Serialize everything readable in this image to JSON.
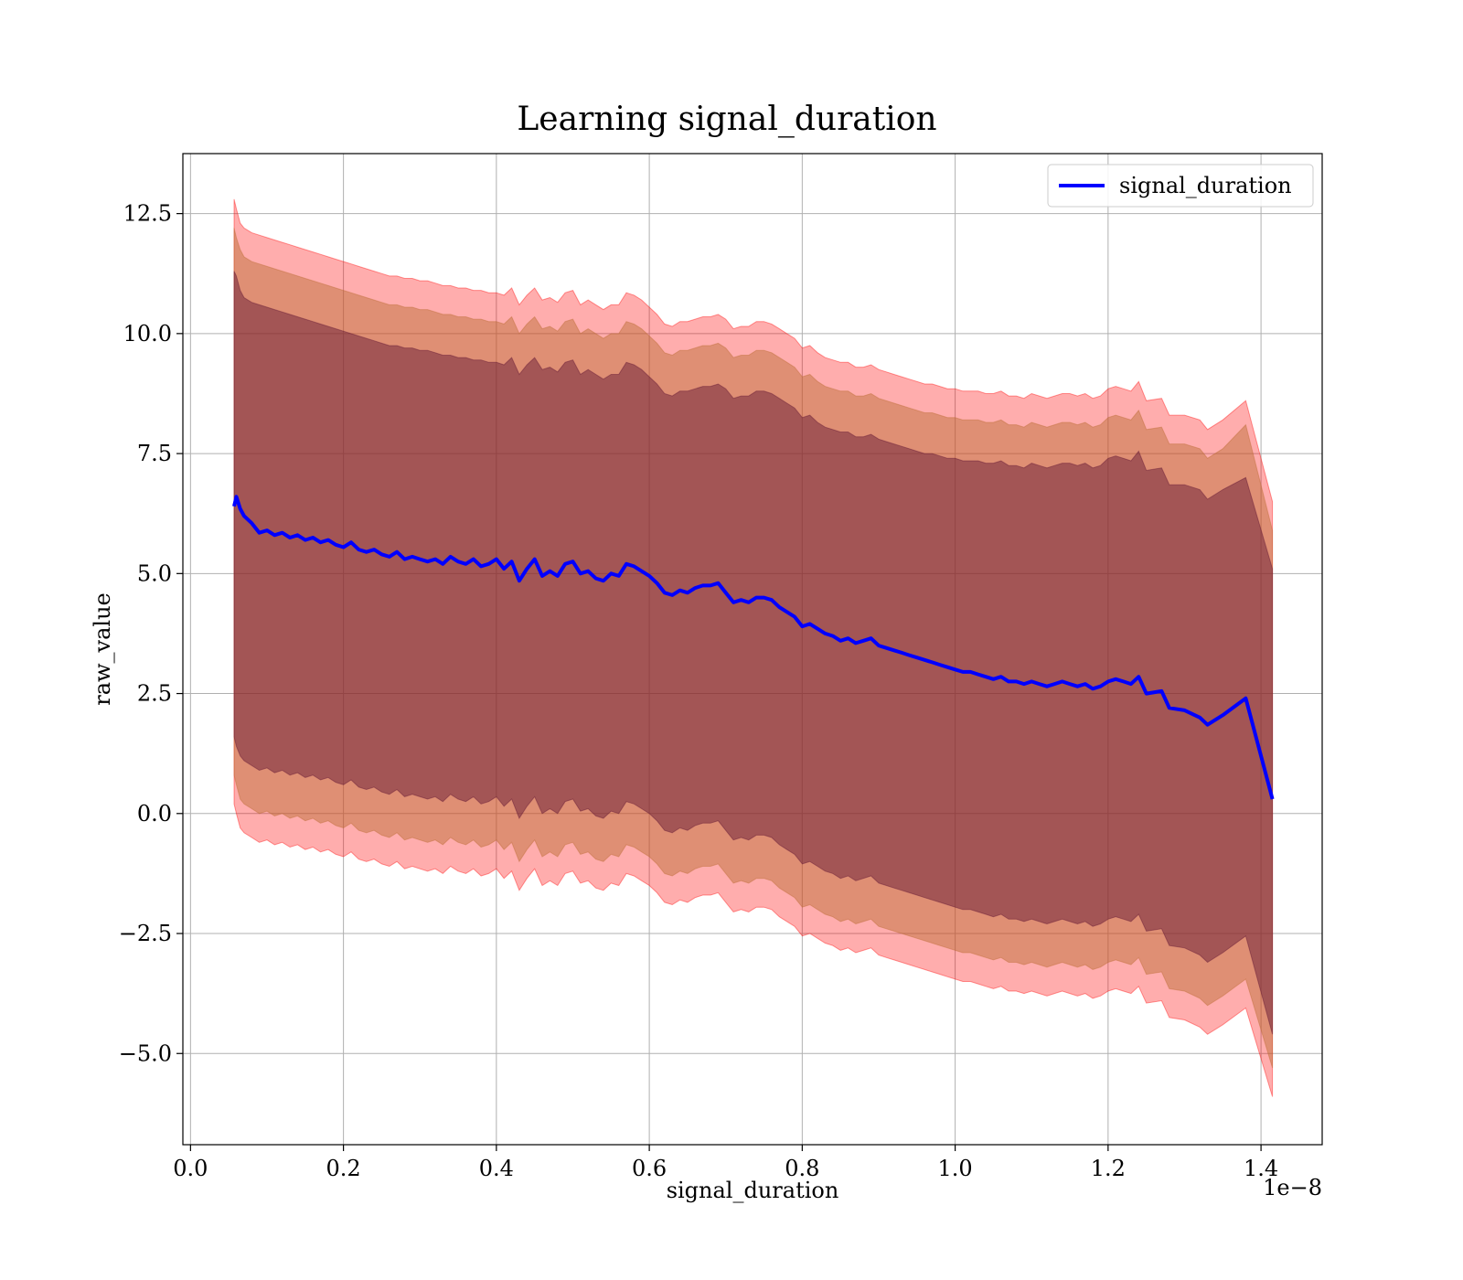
{
  "chart_data": {
    "type": "line",
    "title": "Learning signal_duration",
    "xlabel": "signal_duration",
    "ylabel": "raw_value",
    "x_offset_label": "1e−8",
    "xlim": [
      -0.01,
      1.48
    ],
    "ylim": [
      -6.9,
      13.75
    ],
    "x_ticks": [
      0.0,
      0.2,
      0.4,
      0.6,
      0.8,
      1.0,
      1.2,
      1.4
    ],
    "x_tick_labels": [
      "0.0",
      "0.2",
      "0.4",
      "0.6",
      "0.8",
      "1.0",
      "1.2",
      "1.4"
    ],
    "y_ticks": [
      -5.0,
      -2.5,
      0.0,
      2.5,
      5.0,
      7.5,
      10.0,
      12.5
    ],
    "y_tick_labels": [
      "−5.0",
      "−2.5",
      "0.0",
      "2.5",
      "5.0",
      "7.5",
      "10.0",
      "12.5"
    ],
    "grid": true,
    "legend": {
      "position": "top-right",
      "entries": [
        "signal_duration"
      ]
    },
    "colors": {
      "line": "#0000ff",
      "band_outer": "#ff0000",
      "band_middle": "#b86a2f",
      "band_inner": "#5a1030",
      "grid": "#b0b0b0"
    },
    "series": [
      {
        "name": "signal_duration",
        "x": [
          0.057,
          0.06,
          0.065,
          0.07,
          0.08,
          0.09,
          0.1,
          0.11,
          0.12,
          0.13,
          0.14,
          0.15,
          0.16,
          0.17,
          0.18,
          0.19,
          0.2,
          0.21,
          0.22,
          0.23,
          0.24,
          0.25,
          0.26,
          0.27,
          0.28,
          0.29,
          0.3,
          0.31,
          0.32,
          0.33,
          0.34,
          0.35,
          0.36,
          0.37,
          0.38,
          0.39,
          0.4,
          0.41,
          0.42,
          0.43,
          0.44,
          0.45,
          0.46,
          0.47,
          0.48,
          0.49,
          0.5,
          0.51,
          0.52,
          0.53,
          0.54,
          0.55,
          0.56,
          0.57,
          0.58,
          0.59,
          0.6,
          0.61,
          0.62,
          0.63,
          0.64,
          0.65,
          0.66,
          0.67,
          0.68,
          0.69,
          0.7,
          0.71,
          0.72,
          0.73,
          0.74,
          0.75,
          0.76,
          0.77,
          0.78,
          0.79,
          0.8,
          0.81,
          0.82,
          0.83,
          0.84,
          0.85,
          0.86,
          0.87,
          0.88,
          0.89,
          0.9,
          0.91,
          0.92,
          0.93,
          0.94,
          0.95,
          0.96,
          0.97,
          0.98,
          0.99,
          1.0,
          1.01,
          1.02,
          1.03,
          1.04,
          1.05,
          1.06,
          1.07,
          1.08,
          1.09,
          1.1,
          1.11,
          1.12,
          1.13,
          1.14,
          1.15,
          1.16,
          1.17,
          1.18,
          1.19,
          1.2,
          1.21,
          1.22,
          1.23,
          1.24,
          1.25,
          1.27,
          1.28,
          1.3,
          1.32,
          1.33,
          1.35,
          1.38,
          1.415
        ],
        "y": [
          6.4,
          6.6,
          6.35,
          6.2,
          6.05,
          5.85,
          5.9,
          5.8,
          5.85,
          5.75,
          5.8,
          5.7,
          5.75,
          5.65,
          5.7,
          5.6,
          5.55,
          5.65,
          5.5,
          5.45,
          5.5,
          5.4,
          5.35,
          5.45,
          5.3,
          5.35,
          5.3,
          5.25,
          5.3,
          5.2,
          5.35,
          5.25,
          5.2,
          5.3,
          5.15,
          5.2,
          5.3,
          5.1,
          5.25,
          4.85,
          5.1,
          5.3,
          4.95,
          5.05,
          4.95,
          5.2,
          5.25,
          5.0,
          5.05,
          4.9,
          4.85,
          5.0,
          4.95,
          5.2,
          5.15,
          5.05,
          4.95,
          4.8,
          4.6,
          4.55,
          4.65,
          4.6,
          4.7,
          4.75,
          4.75,
          4.8,
          4.6,
          4.4,
          4.45,
          4.4,
          4.5,
          4.5,
          4.45,
          4.3,
          4.2,
          4.1,
          3.9,
          3.95,
          3.85,
          3.75,
          3.7,
          3.6,
          3.65,
          3.55,
          3.6,
          3.65,
          3.5,
          3.45,
          3.4,
          3.35,
          3.3,
          3.25,
          3.2,
          3.15,
          3.1,
          3.05,
          3.0,
          2.95,
          2.95,
          2.9,
          2.85,
          2.8,
          2.85,
          2.75,
          2.75,
          2.7,
          2.75,
          2.7,
          2.65,
          2.7,
          2.75,
          2.7,
          2.65,
          2.7,
          2.6,
          2.65,
          2.75,
          2.8,
          2.75,
          2.7,
          2.85,
          2.5,
          2.55,
          2.2,
          2.15,
          2.0,
          1.85,
          2.05,
          2.4,
          0.3
        ]
      }
    ],
    "bands": [
      {
        "role": "outer",
        "upper": [
          12.8,
          12.6,
          12.3,
          12.2,
          12.1,
          12.05,
          12.0,
          11.95,
          11.9,
          11.85,
          11.8,
          11.75,
          11.7,
          11.65,
          11.6,
          11.55,
          11.5,
          11.45,
          11.4,
          11.35,
          11.3,
          11.25,
          11.2,
          11.2,
          11.15,
          11.15,
          11.1,
          11.1,
          11.05,
          11.0,
          11.0,
          10.95,
          10.95,
          10.9,
          10.9,
          10.85,
          10.85,
          10.8,
          10.95,
          10.6,
          10.8,
          10.95,
          10.7,
          10.75,
          10.65,
          10.85,
          10.9,
          10.6,
          10.7,
          10.6,
          10.5,
          10.6,
          10.6,
          10.85,
          10.8,
          10.7,
          10.55,
          10.4,
          10.2,
          10.15,
          10.25,
          10.25,
          10.3,
          10.35,
          10.35,
          10.4,
          10.3,
          10.1,
          10.15,
          10.15,
          10.25,
          10.25,
          10.2,
          10.1,
          10.0,
          9.9,
          9.7,
          9.75,
          9.6,
          9.5,
          9.45,
          9.4,
          9.4,
          9.3,
          9.3,
          9.35,
          9.25,
          9.2,
          9.15,
          9.1,
          9.05,
          9.0,
          8.95,
          8.95,
          8.9,
          8.85,
          8.85,
          8.8,
          8.8,
          8.8,
          8.75,
          8.75,
          8.8,
          8.7,
          8.7,
          8.65,
          8.75,
          8.7,
          8.65,
          8.7,
          8.75,
          8.75,
          8.7,
          8.75,
          8.65,
          8.7,
          8.85,
          8.9,
          8.85,
          8.8,
          9.0,
          8.6,
          8.65,
          8.3,
          8.3,
          8.2,
          8.0,
          8.2,
          8.6,
          6.5
        ],
        "lower": [
          0.2,
          0.0,
          -0.3,
          -0.4,
          -0.5,
          -0.6,
          -0.55,
          -0.65,
          -0.6,
          -0.7,
          -0.65,
          -0.75,
          -0.7,
          -0.8,
          -0.75,
          -0.85,
          -0.9,
          -0.8,
          -0.95,
          -1.0,
          -0.95,
          -1.05,
          -1.1,
          -1.0,
          -1.15,
          -1.1,
          -1.15,
          -1.2,
          -1.15,
          -1.25,
          -1.1,
          -1.2,
          -1.25,
          -1.15,
          -1.3,
          -1.25,
          -1.15,
          -1.35,
          -1.2,
          -1.6,
          -1.35,
          -1.15,
          -1.5,
          -1.4,
          -1.5,
          -1.25,
          -1.2,
          -1.45,
          -1.4,
          -1.55,
          -1.6,
          -1.45,
          -1.5,
          -1.25,
          -1.3,
          -1.4,
          -1.5,
          -1.65,
          -1.85,
          -1.9,
          -1.8,
          -1.85,
          -1.75,
          -1.7,
          -1.7,
          -1.65,
          -1.85,
          -2.05,
          -2.0,
          -2.05,
          -1.95,
          -1.95,
          -2.0,
          -2.15,
          -2.25,
          -2.35,
          -2.55,
          -2.5,
          -2.6,
          -2.7,
          -2.75,
          -2.85,
          -2.8,
          -2.9,
          -2.85,
          -2.8,
          -2.95,
          -3.0,
          -3.05,
          -3.1,
          -3.15,
          -3.2,
          -3.25,
          -3.3,
          -3.35,
          -3.4,
          -3.45,
          -3.5,
          -3.5,
          -3.55,
          -3.6,
          -3.65,
          -3.6,
          -3.7,
          -3.7,
          -3.75,
          -3.7,
          -3.75,
          -3.8,
          -3.75,
          -3.7,
          -3.75,
          -3.8,
          -3.75,
          -3.85,
          -3.8,
          -3.7,
          -3.65,
          -3.7,
          -3.75,
          -3.6,
          -3.95,
          -3.9,
          -4.25,
          -4.3,
          -4.45,
          -4.6,
          -4.4,
          -4.05,
          -5.9
        ]
      },
      {
        "role": "middle",
        "upper": [
          12.2,
          12.0,
          11.75,
          11.6,
          11.5,
          11.45,
          11.4,
          11.35,
          11.3,
          11.25,
          11.2,
          11.15,
          11.1,
          11.05,
          11.0,
          10.95,
          10.9,
          10.85,
          10.8,
          10.75,
          10.7,
          10.65,
          10.6,
          10.6,
          10.55,
          10.55,
          10.5,
          10.5,
          10.45,
          10.4,
          10.4,
          10.35,
          10.35,
          10.3,
          10.3,
          10.25,
          10.25,
          10.2,
          10.35,
          10.0,
          10.2,
          10.35,
          10.1,
          10.15,
          10.05,
          10.25,
          10.3,
          10.0,
          10.1,
          10.0,
          9.9,
          10.0,
          10.0,
          10.25,
          10.2,
          10.1,
          9.95,
          9.8,
          9.6,
          9.55,
          9.65,
          9.65,
          9.7,
          9.75,
          9.75,
          9.8,
          9.7,
          9.5,
          9.55,
          9.55,
          9.65,
          9.65,
          9.6,
          9.5,
          9.4,
          9.3,
          9.1,
          9.15,
          9.0,
          8.9,
          8.85,
          8.8,
          8.8,
          8.7,
          8.7,
          8.75,
          8.65,
          8.6,
          8.55,
          8.5,
          8.45,
          8.4,
          8.35,
          8.35,
          8.3,
          8.25,
          8.25,
          8.2,
          8.2,
          8.2,
          8.15,
          8.15,
          8.2,
          8.1,
          8.1,
          8.05,
          8.15,
          8.1,
          8.05,
          8.1,
          8.15,
          8.15,
          8.1,
          8.15,
          8.05,
          8.1,
          8.25,
          8.3,
          8.25,
          8.2,
          8.4,
          8.0,
          8.05,
          7.7,
          7.7,
          7.6,
          7.4,
          7.6,
          8.1,
          5.9
        ],
        "lower": [
          0.8,
          0.6,
          0.3,
          0.2,
          0.1,
          0.0,
          0.05,
          -0.05,
          0.0,
          -0.1,
          -0.05,
          -0.15,
          -0.1,
          -0.2,
          -0.15,
          -0.25,
          -0.3,
          -0.2,
          -0.35,
          -0.4,
          -0.35,
          -0.45,
          -0.5,
          -0.4,
          -0.55,
          -0.5,
          -0.55,
          -0.6,
          -0.55,
          -0.65,
          -0.5,
          -0.6,
          -0.65,
          -0.55,
          -0.7,
          -0.65,
          -0.55,
          -0.75,
          -0.6,
          -1.0,
          -0.75,
          -0.55,
          -0.9,
          -0.8,
          -0.9,
          -0.65,
          -0.6,
          -0.85,
          -0.8,
          -0.95,
          -1.0,
          -0.85,
          -0.9,
          -0.65,
          -0.7,
          -0.8,
          -0.9,
          -1.05,
          -1.25,
          -1.3,
          -1.2,
          -1.25,
          -1.15,
          -1.1,
          -1.1,
          -1.05,
          -1.25,
          -1.45,
          -1.4,
          -1.45,
          -1.35,
          -1.35,
          -1.4,
          -1.55,
          -1.65,
          -1.75,
          -1.95,
          -1.9,
          -2.0,
          -2.1,
          -2.15,
          -2.25,
          -2.2,
          -2.3,
          -2.25,
          -2.2,
          -2.35,
          -2.4,
          -2.45,
          -2.5,
          -2.55,
          -2.6,
          -2.65,
          -2.7,
          -2.75,
          -2.8,
          -2.85,
          -2.9,
          -2.9,
          -2.95,
          -3.0,
          -3.05,
          -3.0,
          -3.1,
          -3.1,
          -3.15,
          -3.1,
          -3.15,
          -3.2,
          -3.15,
          -3.1,
          -3.15,
          -3.2,
          -3.15,
          -3.25,
          -3.2,
          -3.1,
          -3.05,
          -3.1,
          -3.15,
          -3.0,
          -3.35,
          -3.3,
          -3.65,
          -3.7,
          -3.85,
          -4.0,
          -3.8,
          -3.45,
          -5.3
        ]
      },
      {
        "role": "inner",
        "upper": [
          11.3,
          11.2,
          10.9,
          10.75,
          10.65,
          10.6,
          10.55,
          10.5,
          10.45,
          10.4,
          10.35,
          10.3,
          10.25,
          10.2,
          10.15,
          10.1,
          10.05,
          10.0,
          9.95,
          9.9,
          9.85,
          9.8,
          9.75,
          9.75,
          9.7,
          9.7,
          9.65,
          9.65,
          9.6,
          9.55,
          9.55,
          9.5,
          9.5,
          9.45,
          9.45,
          9.4,
          9.4,
          9.35,
          9.5,
          9.15,
          9.35,
          9.5,
          9.25,
          9.3,
          9.2,
          9.4,
          9.45,
          9.15,
          9.25,
          9.15,
          9.05,
          9.15,
          9.15,
          9.4,
          9.35,
          9.25,
          9.1,
          8.95,
          8.75,
          8.7,
          8.8,
          8.8,
          8.85,
          8.9,
          8.9,
          8.95,
          8.85,
          8.65,
          8.7,
          8.7,
          8.8,
          8.8,
          8.75,
          8.65,
          8.55,
          8.45,
          8.25,
          8.3,
          8.15,
          8.05,
          8.0,
          7.95,
          7.95,
          7.85,
          7.85,
          7.9,
          7.8,
          7.75,
          7.7,
          7.65,
          7.6,
          7.55,
          7.5,
          7.5,
          7.45,
          7.4,
          7.4,
          7.35,
          7.35,
          7.35,
          7.3,
          7.3,
          7.35,
          7.25,
          7.25,
          7.2,
          7.3,
          7.25,
          7.2,
          7.25,
          7.3,
          7.3,
          7.25,
          7.3,
          7.2,
          7.25,
          7.4,
          7.45,
          7.4,
          7.35,
          7.55,
          7.15,
          7.2,
          6.85,
          6.85,
          6.75,
          6.55,
          6.75,
          7.0,
          5.1
        ],
        "lower": [
          1.6,
          1.4,
          1.2,
          1.1,
          1.0,
          0.9,
          0.95,
          0.85,
          0.9,
          0.8,
          0.85,
          0.75,
          0.8,
          0.7,
          0.75,
          0.65,
          0.6,
          0.7,
          0.55,
          0.5,
          0.55,
          0.45,
          0.4,
          0.5,
          0.35,
          0.4,
          0.35,
          0.3,
          0.35,
          0.25,
          0.4,
          0.3,
          0.25,
          0.35,
          0.2,
          0.25,
          0.35,
          0.15,
          0.3,
          -0.1,
          0.15,
          0.35,
          0.0,
          0.1,
          0.0,
          0.25,
          0.3,
          0.05,
          0.1,
          -0.05,
          -0.1,
          0.05,
          0.0,
          0.25,
          0.2,
          0.1,
          0.0,
          -0.15,
          -0.35,
          -0.4,
          -0.3,
          -0.35,
          -0.25,
          -0.2,
          -0.2,
          -0.15,
          -0.35,
          -0.55,
          -0.5,
          -0.55,
          -0.45,
          -0.45,
          -0.5,
          -0.65,
          -0.75,
          -0.85,
          -1.05,
          -1.0,
          -1.1,
          -1.2,
          -1.25,
          -1.35,
          -1.3,
          -1.4,
          -1.35,
          -1.3,
          -1.45,
          -1.5,
          -1.55,
          -1.6,
          -1.65,
          -1.7,
          -1.75,
          -1.8,
          -1.85,
          -1.9,
          -1.95,
          -2.0,
          -2.0,
          -2.05,
          -2.1,
          -2.15,
          -2.1,
          -2.2,
          -2.2,
          -2.25,
          -2.2,
          -2.25,
          -2.3,
          -2.25,
          -2.2,
          -2.25,
          -2.3,
          -2.25,
          -2.35,
          -2.3,
          -2.2,
          -2.15,
          -2.2,
          -2.25,
          -2.1,
          -2.45,
          -2.4,
          -2.75,
          -2.8,
          -2.95,
          -3.1,
          -2.9,
          -2.55,
          -4.6
        ]
      }
    ]
  }
}
